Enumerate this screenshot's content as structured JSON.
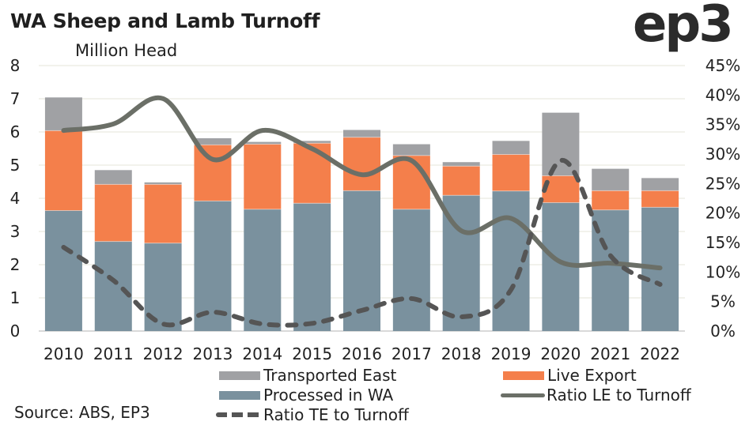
{
  "header": {
    "title": "WA Sheep and Lamb Turnoff",
    "subtitle": "Million Head",
    "logo": "ep3"
  },
  "source": "Source: ABS, EP3",
  "colors": {
    "processed": "#7a919e",
    "live_export": "#f47f4b",
    "transported_east": "#a0a1a4",
    "ratio_le": "#6b6f67",
    "ratio_te": "#555555",
    "grid": "#eeeee6"
  },
  "chart_data": {
    "type": "bar",
    "title": "WA Sheep and Lamb Turnoff",
    "ylabel": "Million Head",
    "y2label": "",
    "xlabel": "",
    "categories": [
      "2010",
      "2011",
      "2012",
      "2013",
      "2014",
      "2015",
      "2016",
      "2017",
      "2018",
      "2019",
      "2020",
      "2021",
      "2022"
    ],
    "ylim": [
      0,
      8
    ],
    "yticks": [
      "0",
      "1",
      "2",
      "3",
      "4",
      "5",
      "6",
      "7",
      "8"
    ],
    "y2lim": [
      0,
      45
    ],
    "y2ticks": [
      "0%",
      "5%",
      "10%",
      "15%",
      "20%",
      "25%",
      "30%",
      "35%",
      "40%",
      "45%"
    ],
    "grid": true,
    "stacked": true,
    "series": [
      {
        "name": "Processed in WA",
        "kind": "bar",
        "axis": "left",
        "values": [
          3.63,
          2.7,
          2.65,
          3.92,
          3.67,
          3.85,
          4.23,
          3.67,
          4.09,
          4.22,
          3.87,
          3.65,
          3.73
        ]
      },
      {
        "name": "Live Export",
        "kind": "bar",
        "axis": "left",
        "values": [
          2.41,
          1.72,
          1.77,
          1.69,
          1.96,
          1.81,
          1.61,
          1.62,
          0.88,
          1.1,
          0.81,
          0.58,
          0.5
        ]
      },
      {
        "name": "Transported East",
        "kind": "bar",
        "axis": "left",
        "values": [
          1.0,
          0.43,
          0.06,
          0.2,
          0.07,
          0.07,
          0.22,
          0.34,
          0.12,
          0.41,
          1.9,
          0.66,
          0.38
        ]
      },
      {
        "name": "Ratio LE to Turnoff",
        "kind": "line",
        "style": "solid",
        "axis": "right",
        "values": [
          34.0,
          35.1,
          39.4,
          29.1,
          34.0,
          30.9,
          26.5,
          28.9,
          17.0,
          19.1,
          11.7,
          11.5,
          10.7
        ]
      },
      {
        "name": "Ratio TE to Turnoff",
        "kind": "line",
        "style": "dashed",
        "axis": "right",
        "values": [
          14.2,
          8.6,
          1.2,
          3.2,
          1.2,
          1.3,
          3.5,
          5.5,
          2.4,
          7.0,
          28.9,
          12.8,
          7.9
        ]
      }
    ],
    "legend": {
      "placement": "bottom",
      "items": [
        "Transported East",
        "Live Export",
        "Processed in WA",
        "Ratio LE to Turnoff",
        "Ratio TE to Turnoff"
      ]
    }
  }
}
